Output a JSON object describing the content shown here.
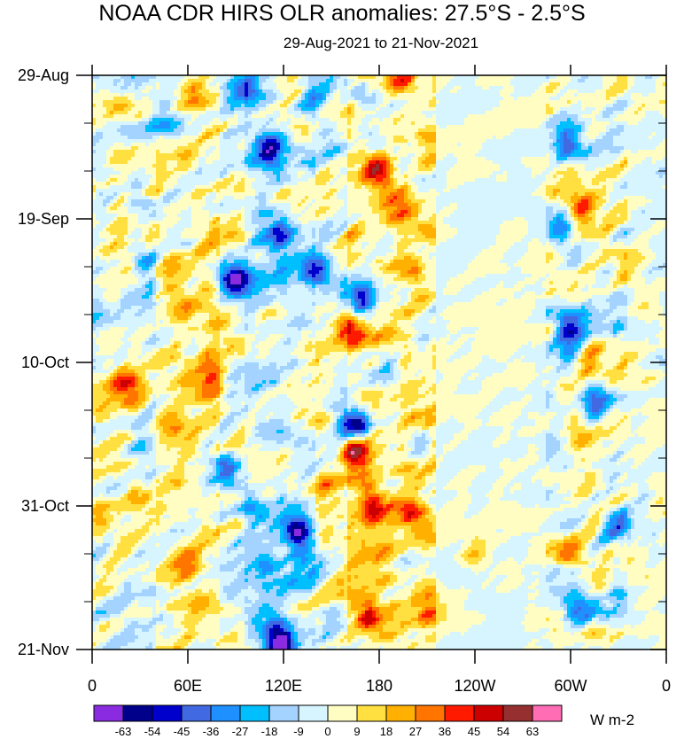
{
  "chart_data": {
    "type": "heatmap",
    "title": "NOAA CDR HIRS OLR anomalies: 27.5°S - 2.5°S",
    "subtitle": "29-Aug-2021 to 21-Nov-2021",
    "x_ticks": [
      {
        "lon": 0,
        "label": "0"
      },
      {
        "lon": 60,
        "label": "60E"
      },
      {
        "lon": 120,
        "label": "120E"
      },
      {
        "lon": 180,
        "label": "180"
      },
      {
        "lon": 240,
        "label": "120W"
      },
      {
        "lon": 300,
        "label": "60W"
      },
      {
        "lon": 360,
        "label": "0"
      }
    ],
    "x_range": [
      0,
      360
    ],
    "y_ticks": [
      {
        "day": 0,
        "label": "29-Aug"
      },
      {
        "day": 21,
        "label": "19-Sep"
      },
      {
        "day": 42,
        "label": "10-Oct"
      },
      {
        "day": 63,
        "label": "31-Oct"
      },
      {
        "day": 84,
        "label": "21-Nov"
      }
    ],
    "y_range_days": [
      0,
      84
    ],
    "colorbar": {
      "levels": [
        "-63",
        "-54",
        "-45",
        "-36",
        "-27",
        "-18",
        "-9",
        "0",
        "9",
        "18",
        "27",
        "36",
        "45",
        "54",
        "63"
      ],
      "colors": [
        "#8a2be2",
        "#00008b",
        "#0000cd",
        "#4169e1",
        "#1e90ff",
        "#00bfff",
        "#a4d3ff",
        "#d6f5ff",
        "#fffdc2",
        "#ffe040",
        "#ffb000",
        "#ff7500",
        "#ff1a00",
        "#cc0000",
        "#963030",
        "#ff6eb4"
      ],
      "units": "W m-2"
    },
    "anomaly_features": [
      {
        "lon": 95,
        "day": 2,
        "value": -40
      },
      {
        "lon": 60,
        "day": 3,
        "value": 18
      },
      {
        "lon": 140,
        "day": 2,
        "value": -18
      },
      {
        "lon": 165,
        "day": 2,
        "value": -25
      },
      {
        "lon": 195,
        "day": 1,
        "value": 25
      },
      {
        "lon": 45,
        "day": 7,
        "value": -25
      },
      {
        "lon": 112,
        "day": 11,
        "value": -45
      },
      {
        "lon": 150,
        "day": 9,
        "value": -30
      },
      {
        "lon": 180,
        "day": 14,
        "value": 50
      },
      {
        "lon": 195,
        "day": 20,
        "value": 30
      },
      {
        "lon": 200,
        "day": 28,
        "value": 25
      },
      {
        "lon": 118,
        "day": 23,
        "value": -45
      },
      {
        "lon": 90,
        "day": 30,
        "value": -60
      },
      {
        "lon": 140,
        "day": 28,
        "value": -35
      },
      {
        "lon": 168,
        "day": 33,
        "value": -55
      },
      {
        "lon": 160,
        "day": 37,
        "value": 40
      },
      {
        "lon": 20,
        "day": 45,
        "value": 45
      },
      {
        "lon": 35,
        "day": 30,
        "value": -30
      },
      {
        "lon": 55,
        "day": 33,
        "value": 20
      },
      {
        "lon": 75,
        "day": 44,
        "value": 25
      },
      {
        "lon": 185,
        "day": 43,
        "value": -45
      },
      {
        "lon": 165,
        "day": 51,
        "value": -60
      },
      {
        "lon": 165,
        "day": 55,
        "value": 45
      },
      {
        "lon": 150,
        "day": 60,
        "value": 30
      },
      {
        "lon": 175,
        "day": 63,
        "value": 35
      },
      {
        "lon": 205,
        "day": 54,
        "value": -30
      },
      {
        "lon": 200,
        "day": 64,
        "value": 25
      },
      {
        "lon": 85,
        "day": 58,
        "value": -35
      },
      {
        "lon": 100,
        "day": 63,
        "value": -40
      },
      {
        "lon": 130,
        "day": 67,
        "value": -60
      },
      {
        "lon": 110,
        "day": 72,
        "value": -35
      },
      {
        "lon": 60,
        "day": 71,
        "value": 20
      },
      {
        "lon": 30,
        "day": 62,
        "value": 20
      },
      {
        "lon": 118,
        "day": 83,
        "value": -63
      },
      {
        "lon": 175,
        "day": 79,
        "value": 35
      },
      {
        "lon": 210,
        "day": 78,
        "value": 25
      },
      {
        "lon": 240,
        "day": 70,
        "value": 15
      },
      {
        "lon": 298,
        "day": 10,
        "value": -35
      },
      {
        "lon": 307,
        "day": 20,
        "value": 35
      },
      {
        "lon": 295,
        "day": 23,
        "value": -35
      },
      {
        "lon": 300,
        "day": 36,
        "value": -35
      },
      {
        "lon": 310,
        "day": 42,
        "value": 35
      },
      {
        "lon": 300,
        "day": 40,
        "value": -30
      },
      {
        "lon": 315,
        "day": 48,
        "value": -35
      },
      {
        "lon": 305,
        "day": 52,
        "value": 35
      },
      {
        "lon": 330,
        "day": 66,
        "value": -40
      },
      {
        "lon": 300,
        "day": 70,
        "value": 25
      },
      {
        "lon": 305,
        "day": 78,
        "value": -40
      },
      {
        "lon": 340,
        "day": 72,
        "value": 15
      }
    ]
  }
}
